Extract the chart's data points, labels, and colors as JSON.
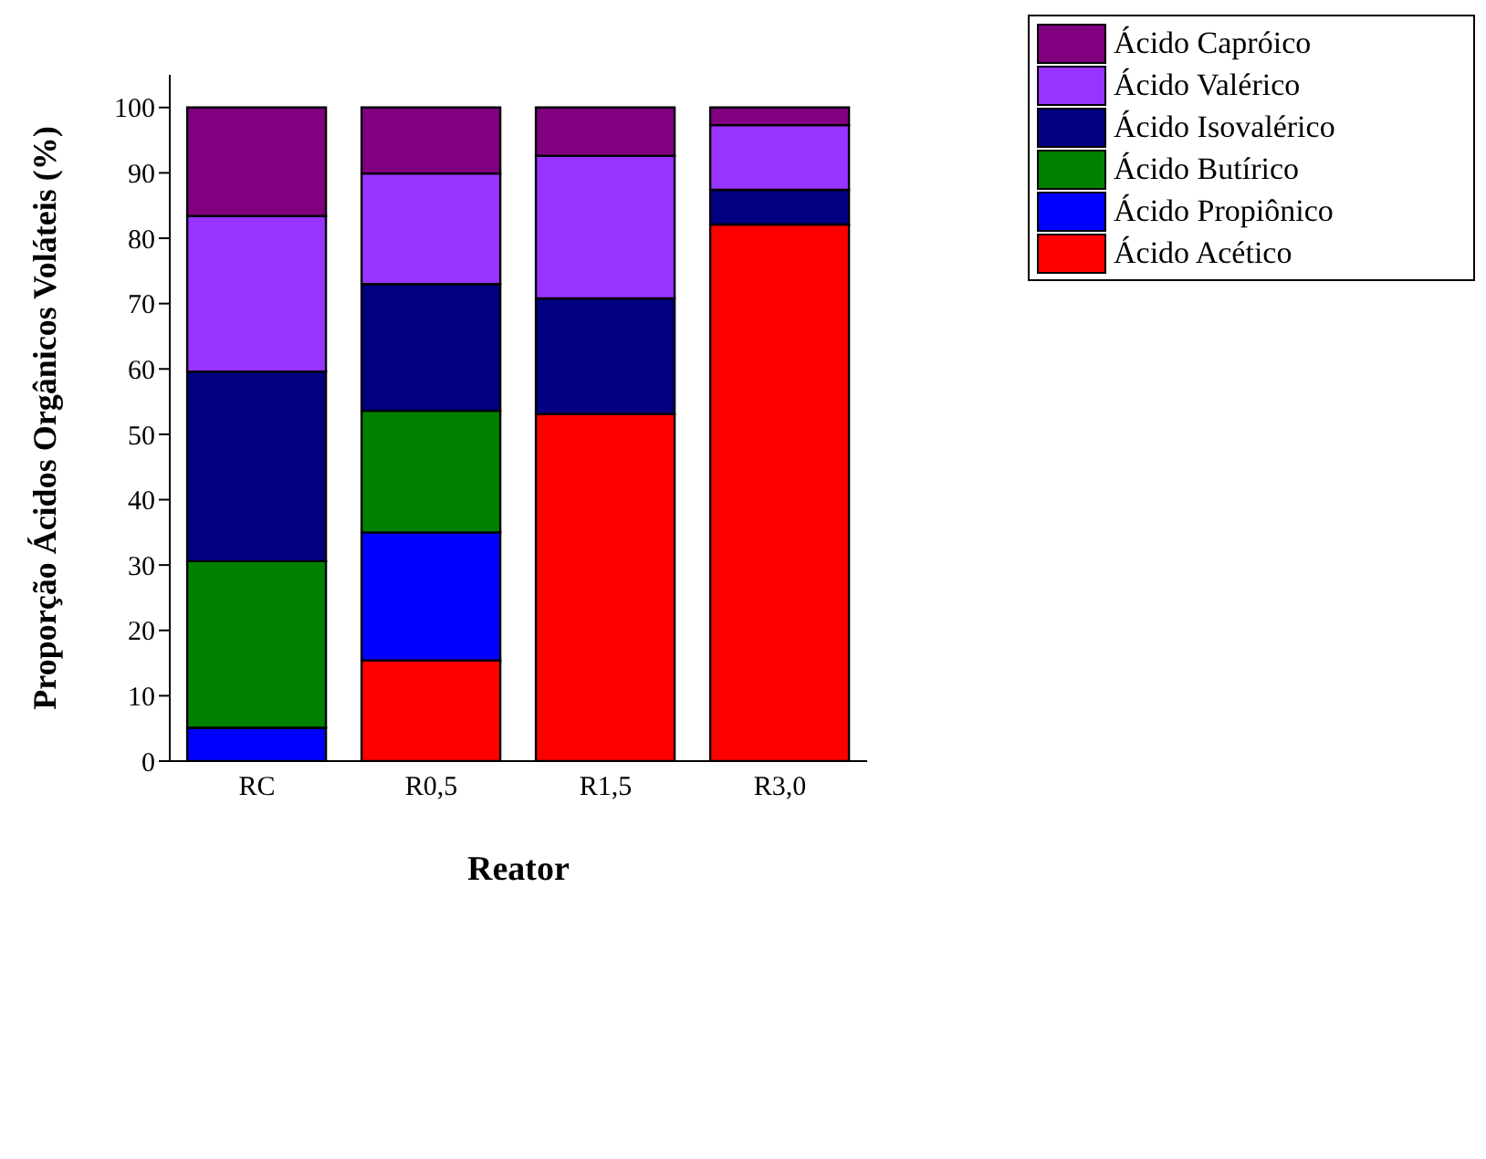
{
  "chart_data": {
    "type": "bar",
    "stacked": true,
    "xlabel": "Reator",
    "ylabel": "Proporção Ácidos Orgânicos Voláteis (%)",
    "categories": [
      "RC",
      "R0,5",
      "R1,5",
      "R3,0"
    ],
    "ylim": [
      0,
      105
    ],
    "yticks": [
      0,
      10,
      20,
      30,
      40,
      50,
      60,
      70,
      80,
      90,
      100
    ],
    "grid": false,
    "legend": "top right",
    "series": [
      {
        "name": "Ácido Acético",
        "color": "#ff0000",
        "values": [
          0,
          15.4,
          53.1,
          82.1
        ]
      },
      {
        "name": "Ácido Propiônico",
        "color": "#0000ff",
        "values": [
          5.1,
          19.6,
          0,
          0
        ]
      },
      {
        "name": "Ácido Butírico",
        "color": "#008000",
        "values": [
          25.5,
          18.6,
          0,
          0
        ]
      },
      {
        "name": "Ácido Isovalérico",
        "color": "#000080",
        "values": [
          29.0,
          19.4,
          17.7,
          5.3
        ]
      },
      {
        "name": "Ácido Valérico",
        "color": "#9933ff",
        "values": [
          23.8,
          16.9,
          21.8,
          9.9
        ]
      },
      {
        "name": "Ácido Capróico",
        "color": "#800080",
        "values": [
          16.6,
          10.1,
          7.4,
          2.7
        ]
      }
    ]
  }
}
